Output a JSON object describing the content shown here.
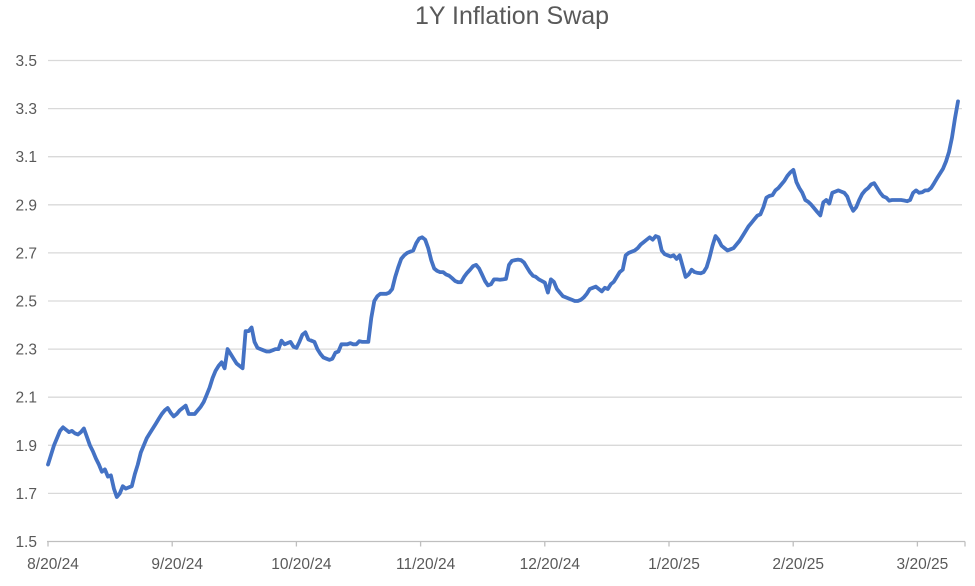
{
  "chart": {
    "title": "1Y Inflation Swap"
  },
  "chart_data": {
    "type": "line",
    "title": "1Y Inflation Swap",
    "xlabel": "",
    "ylabel": "",
    "x_tick_labels": [
      "8/20/24",
      "9/20/24",
      "10/20/24",
      "11/20/24",
      "12/20/24",
      "1/20/25",
      "2/20/25",
      "3/20/25"
    ],
    "y_ticks": [
      1.5,
      1.7,
      1.9,
      2.1,
      2.3,
      2.5,
      2.7,
      2.9,
      3.1,
      3.3,
      3.5
    ],
    "ylim": [
      1.5,
      3.5
    ],
    "grid": true,
    "legend_position": "none",
    "colors": {
      "line": "#4472C4",
      "gridline": "#D9D9D9",
      "axis": "#BFBFBF",
      "label_text": "#595959",
      "title_text": "#595959",
      "background": "#FFFFFF"
    },
    "series": [
      {
        "name": "1Y Inflation Swap",
        "values": [
          1.82,
          1.86,
          1.9,
          1.93,
          1.96,
          1.975,
          1.965,
          1.955,
          1.96,
          1.95,
          1.945,
          1.955,
          1.97,
          1.935,
          1.9,
          1.875,
          1.845,
          1.82,
          1.79,
          1.8,
          1.77,
          1.775,
          1.72,
          1.685,
          1.7,
          1.73,
          1.72,
          1.725,
          1.73,
          1.78,
          1.82,
          1.87,
          1.9,
          1.93,
          1.95,
          1.97,
          1.99,
          2.01,
          2.03,
          2.045,
          2.055,
          2.035,
          2.02,
          2.03,
          2.045,
          2.055,
          2.065,
          2.03,
          2.03,
          2.03,
          2.045,
          2.06,
          2.08,
          2.11,
          2.14,
          2.18,
          2.21,
          2.23,
          2.245,
          2.22,
          2.3,
          2.28,
          2.26,
          2.24,
          2.23,
          2.22,
          2.375,
          2.375,
          2.39,
          2.33,
          2.305,
          2.3,
          2.295,
          2.29,
          2.29,
          2.295,
          2.3,
          2.3,
          2.335,
          2.32,
          2.325,
          2.33,
          2.31,
          2.305,
          2.33,
          2.36,
          2.37,
          2.34,
          2.335,
          2.33,
          2.3,
          2.28,
          2.265,
          2.26,
          2.255,
          2.26,
          2.285,
          2.29,
          2.32,
          2.32,
          2.32,
          2.325,
          2.32,
          2.32,
          2.333,
          2.33,
          2.33,
          2.33,
          2.43,
          2.5,
          2.52,
          2.53,
          2.53,
          2.53,
          2.535,
          2.55,
          2.6,
          2.64,
          2.675,
          2.69,
          2.7,
          2.705,
          2.71,
          2.74,
          2.76,
          2.765,
          2.755,
          2.72,
          2.67,
          2.635,
          2.625,
          2.62,
          2.62,
          2.61,
          2.605,
          2.595,
          2.583,
          2.578,
          2.578,
          2.6,
          2.617,
          2.63,
          2.645,
          2.65,
          2.635,
          2.61,
          2.583,
          2.565,
          2.57,
          2.59,
          2.59,
          2.588,
          2.59,
          2.592,
          2.65,
          2.667,
          2.67,
          2.672,
          2.67,
          2.66,
          2.64,
          2.62,
          2.605,
          2.6,
          2.59,
          2.583,
          2.576,
          2.535,
          2.59,
          2.58,
          2.55,
          2.535,
          2.52,
          2.515,
          2.51,
          2.505,
          2.5,
          2.5,
          2.505,
          2.515,
          2.53,
          2.55,
          2.555,
          2.56,
          2.55,
          2.54,
          2.555,
          2.55,
          2.57,
          2.58,
          2.6,
          2.62,
          2.63,
          2.69,
          2.7,
          2.705,
          2.71,
          2.72,
          2.735,
          2.745,
          2.755,
          2.765,
          2.755,
          2.77,
          2.765,
          2.71,
          2.695,
          2.69,
          2.685,
          2.69,
          2.675,
          2.69,
          2.645,
          2.6,
          2.61,
          2.63,
          2.62,
          2.617,
          2.615,
          2.62,
          2.64,
          2.68,
          2.73,
          2.77,
          2.755,
          2.73,
          2.72,
          2.71,
          2.715,
          2.72,
          2.735,
          2.75,
          2.77,
          2.79,
          2.81,
          2.825,
          2.84,
          2.855,
          2.86,
          2.89,
          2.93,
          2.937,
          2.94,
          2.96,
          2.97,
          2.985,
          3.0,
          3.02,
          3.035,
          3.045,
          2.995,
          2.97,
          2.95,
          2.92,
          2.912,
          2.9,
          2.885,
          2.87,
          2.856,
          2.91,
          2.92,
          2.905,
          2.95,
          2.955,
          2.96,
          2.955,
          2.95,
          2.935,
          2.9,
          2.875,
          2.89,
          2.92,
          2.945,
          2.96,
          2.97,
          2.985,
          2.99,
          2.97,
          2.95,
          2.935,
          2.93,
          2.917,
          2.92,
          2.92,
          2.92,
          2.92,
          2.918,
          2.915,
          2.92,
          2.95,
          2.96,
          2.95,
          2.952,
          2.96,
          2.96,
          2.97,
          2.99,
          3.01,
          3.03,
          3.05,
          3.08,
          3.12,
          3.18,
          3.26,
          3.33
        ]
      }
    ]
  }
}
